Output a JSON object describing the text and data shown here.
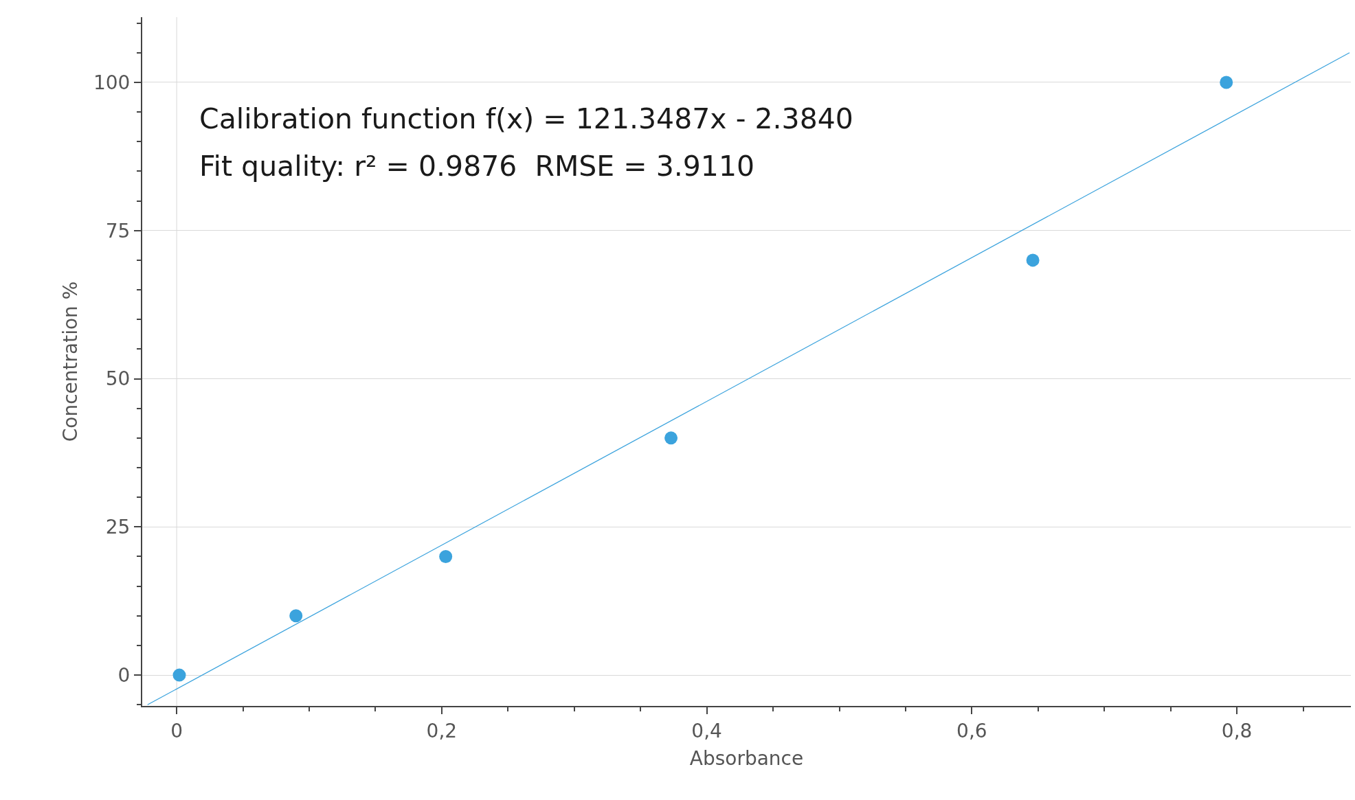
{
  "chart_data": {
    "type": "scatter",
    "xlabel": "Absorbance",
    "ylabel": "Concentration %",
    "series": [
      {
        "color": "#3ba3dd",
        "x": [
          0.002,
          0.09,
          0.203,
          0.373,
          0.646,
          0.792
        ],
        "values": [
          0,
          10,
          20,
          40,
          70,
          100
        ],
        "marker": "circle"
      },
      {
        "type": "line",
        "color": "#3ba3dd",
        "x": [
          -0.022,
          0.885
        ],
        "values": [
          -5,
          105
        ],
        "marker": "none"
      }
    ],
    "xlim": [
      -0.026,
      0.886
    ],
    "ylim": [
      -5.2,
      111
    ],
    "xticks": [
      0,
      {
        "value": 0.2,
        "label": "0,2"
      },
      {
        "value": 0.4,
        "label": "0,4"
      },
      {
        "value": 0.6,
        "label": "0,6"
      },
      {
        "value": 0.8,
        "label": "0,8"
      }
    ],
    "yticks": [
      0,
      25,
      50,
      75,
      100
    ],
    "grid": "y",
    "ref_lines": [
      {
        "axis": "x",
        "value": 0,
        "color": "#d9d9d9"
      }
    ],
    "annotations": [
      "Calibration function f(x) = 121.3487x - 2.3840",
      "Fit quality: r² = 0.9876  RMSE = 3.9110"
    ]
  }
}
